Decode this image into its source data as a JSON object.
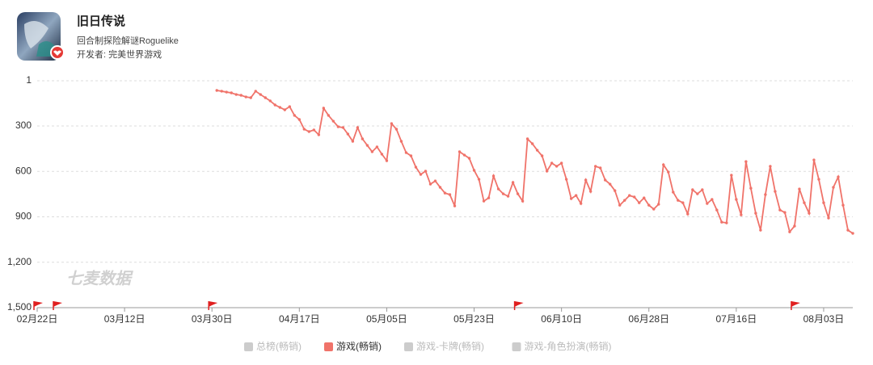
{
  "header": {
    "title": "旧日传说",
    "subtitle": "回合制探险解谜Roguelike",
    "developer": "开发者: 完美世界游戏"
  },
  "watermark": "七麦数据",
  "chart_data": {
    "type": "line",
    "x": [
      "03月31日",
      "04月01日",
      "04月02日",
      "04月03日",
      "04月04日",
      "04月05日",
      "04月06日",
      "04月07日",
      "04月08日",
      "04月09日",
      "04月10日",
      "04月11日",
      "04月12日",
      "04月13日",
      "04月14日",
      "04月15日",
      "04月16日",
      "04月17日",
      "04月18日",
      "04月19日",
      "04月20日",
      "04月21日",
      "04月22日",
      "04月23日",
      "04月24日",
      "04月25日",
      "04月26日",
      "04月27日",
      "04月28日",
      "04月29日",
      "04月30日",
      "05月01日",
      "05月02日",
      "05月03日",
      "05月04日",
      "05月05日",
      "05月06日",
      "05月07日",
      "05月08日",
      "05月09日",
      "05月10日",
      "05月11日",
      "05月12日",
      "05月13日",
      "05月14日",
      "05月15日",
      "05月16日",
      "05月17日",
      "05月18日",
      "05月19日",
      "05月20日",
      "05月21日",
      "05月22日",
      "05月23日",
      "05月24日",
      "05月25日",
      "05月26日",
      "05月27日",
      "05月28日",
      "05月29日",
      "05月30日",
      "05月31日",
      "06月01日",
      "06月02日",
      "06月03日",
      "06月04日",
      "06月05日",
      "06月06日",
      "06月07日",
      "06月08日",
      "06月09日",
      "06月10日",
      "06月11日",
      "06月12日",
      "06月13日",
      "06月14日",
      "06月15日",
      "06月16日",
      "06月17日",
      "06月18日",
      "06月19日",
      "06月20日",
      "06月21日",
      "06月22日",
      "06月23日",
      "06月24日",
      "06月25日",
      "06月26日",
      "06月27日",
      "06月28日",
      "06月29日",
      "06月30日",
      "07月01日",
      "07月02日",
      "07月03日",
      "07月04日",
      "07月05日",
      "07月06日",
      "07月07日",
      "07月08日",
      "07月09日",
      "07月10日",
      "07月11日",
      "07月12日",
      "07月13日",
      "07月14日",
      "07月15日",
      "07月16日",
      "07月17日",
      "07月18日",
      "07月19日",
      "07月20日",
      "07月21日",
      "07月22日",
      "07月23日",
      "07月24日",
      "07月25日",
      "07月26日",
      "07月27日",
      "07月28日",
      "07月29日",
      "07月30日",
      "07月31日",
      "08月01日",
      "08月02日",
      "08月03日",
      "08月04日",
      "08月05日",
      "08月06日",
      "08月07日",
      "08月08日",
      "08月09日"
    ],
    "series": [
      {
        "name": "游戏(畅销)",
        "color": "#f0736a",
        "values": [
          65,
          70,
          76,
          81,
          92,
          97,
          108,
          113,
          70,
          92,
          113,
          134,
          161,
          177,
          193,
          172,
          230,
          257,
          321,
          337,
          326,
          358,
          182,
          230,
          268,
          305,
          310,
          353,
          401,
          310,
          385,
          428,
          470,
          438,
          486,
          529,
          284,
          321,
          401,
          476,
          497,
          572,
          620,
          598,
          684,
          663,
          705,
          743,
          753,
          828,
          470,
          492,
          513,
          593,
          652,
          796,
          775,
          630,
          716,
          748,
          764,
          673,
          748,
          796,
          385,
          417,
          460,
          497,
          598,
          545,
          566,
          545,
          652,
          780,
          759,
          812,
          657,
          732,
          566,
          577,
          657,
          684,
          727,
          823,
          791,
          759,
          769,
          807,
          775,
          823,
          849,
          817,
          556,
          604,
          737,
          791,
          807,
          881,
          721,
          748,
          721,
          812,
          785,
          855,
          935,
          940,
          625,
          785,
          887,
          535,
          711,
          876,
          988,
          753,
          566,
          732,
          855,
          871,
          999,
          961,
          716,
          807,
          876,
          524,
          652,
          807,
          908,
          705,
          636,
          823,
          988,
          1009
        ]
      }
    ],
    "legend": [
      {
        "name": "总榜(畅销)",
        "color": "#cccccc"
      },
      {
        "name": "游戏(畅销)",
        "color": "#f0736a"
      },
      {
        "name": "游戏-卡牌(畅销)",
        "color": "#cccccc"
      },
      {
        "name": "游戏-角色扮演(畅销)",
        "color": "#cccccc"
      }
    ],
    "xlim": [
      "02月22日",
      "08月09日"
    ],
    "xticks": [
      "02月22日",
      "03月12日",
      "03月30日",
      "04月17日",
      "05月05日",
      "05月23日",
      "06月10日",
      "06月28日",
      "07月16日",
      "08月03日"
    ],
    "ylim": [
      1,
      1500
    ],
    "y_inverted": true,
    "yticks": [
      1,
      300,
      600,
      900,
      {
        "value": 1200,
        "label": "1,200"
      },
      {
        "value": 1500,
        "label": "1,500"
      }
    ],
    "grid": true,
    "flags": [
      "02月22日",
      "02月26日",
      "03月30日",
      "06月01日",
      "07月28日"
    ],
    "flag_color": "#e02020"
  }
}
